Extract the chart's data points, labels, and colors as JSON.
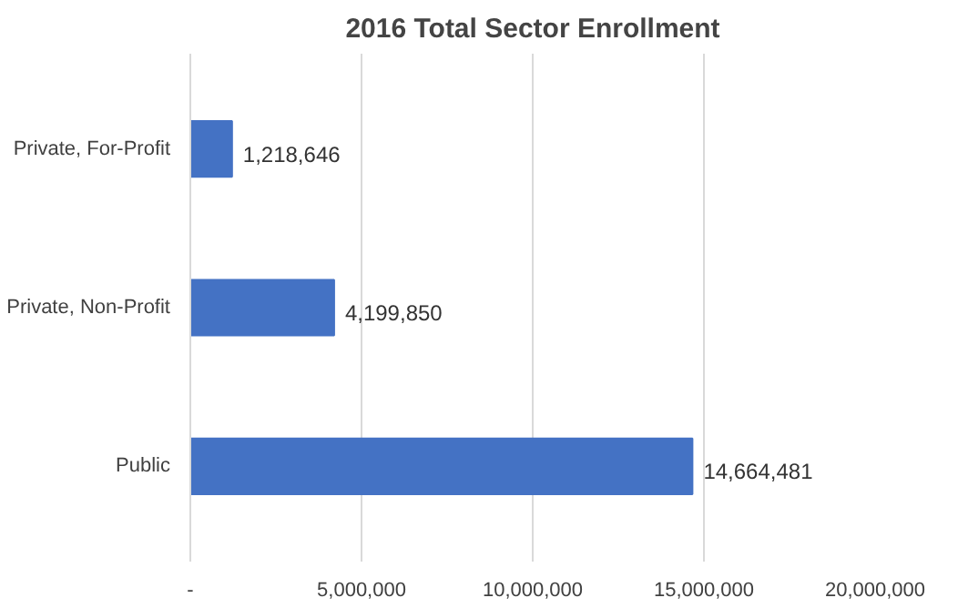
{
  "chart_data": {
    "type": "bar",
    "orientation": "horizontal",
    "title": "2016 Total Sector Enrollment",
    "categories": [
      "Private, For-Profit",
      "Private, Non-Profit",
      "Public"
    ],
    "values": [
      1218646,
      4199850,
      14664481
    ],
    "value_labels": [
      "1,218,646",
      "4,199,850",
      "14,664,481"
    ],
    "color": "#4472c4",
    "xlim": [
      0,
      20000000
    ],
    "xticks": [
      {
        "value": 0,
        "label": "-"
      },
      {
        "value": 5000000,
        "label": "5,000,000"
      },
      {
        "value": 10000000,
        "label": "10,000,000"
      },
      {
        "value": 15000000,
        "label": "15,000,000"
      },
      {
        "value": 20000000,
        "label": "20,000,000"
      }
    ],
    "grid": "x"
  }
}
